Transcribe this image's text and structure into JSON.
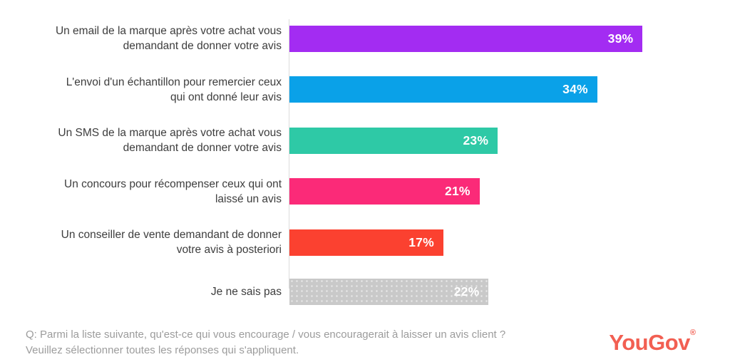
{
  "chart_data": {
    "type": "bar",
    "orientation": "horizontal",
    "title": "",
    "xlabel": "",
    "ylabel": "",
    "xlim": [
      0,
      48
    ],
    "grid": false,
    "legend": false,
    "value_label_position": "inside-end",
    "categories": [
      "Un email de la marque après votre achat vous demandant de donner votre avis",
      "L'envoi d'un échantillon pour remercier ceux qui ont donné leur avis",
      "Un SMS de la marque après votre achat vous demandant de donner votre avis",
      "Un concours pour récompenser ceux qui ont laissé un avis",
      "Un conseiller de vente demandant de donner votre avis à posteriori",
      "Je ne sais pas"
    ],
    "label_lines": [
      [
        "Un email de la marque après votre achat vous",
        "demandant de donner votre avis"
      ],
      [
        "L'envoi d'un échantillon pour remercier ceux",
        "qui ont donné leur avis"
      ],
      [
        "Un SMS de la marque après votre achat vous",
        "demandant de donner votre avis"
      ],
      [
        "Un concours pour récompenser ceux qui ont",
        "laissé un avis"
      ],
      [
        "Un conseiller de vente demandant de donner",
        "votre avis à posteriori"
      ],
      [
        "Je ne sais pas"
      ]
    ],
    "values": [
      39,
      34,
      23,
      21,
      17,
      22
    ],
    "value_labels": [
      "39%",
      "34%",
      "23%",
      "21%",
      "17%",
      "22%"
    ],
    "colors": [
      "#A32CF2",
      "#0AA1E8",
      "#2EC9A6",
      "#FB2A78",
      "#FB4130",
      "#C9C9C9"
    ],
    "patterns": [
      "solid",
      "solid",
      "solid",
      "solid",
      "solid",
      "dots"
    ]
  },
  "footer": {
    "question_line1": "Q: Parmi la liste suivante, qu'est-ce qui vous encourage / vous encouragerait à laisser un avis client ?",
    "question_line2": "Veuillez sélectionner toutes les réponses qui s'appliquent.",
    "text_color": "#9c9c9c"
  },
  "branding": {
    "logo_text": "YouGov",
    "registered_mark": "®",
    "logo_color": "#F25F52"
  }
}
